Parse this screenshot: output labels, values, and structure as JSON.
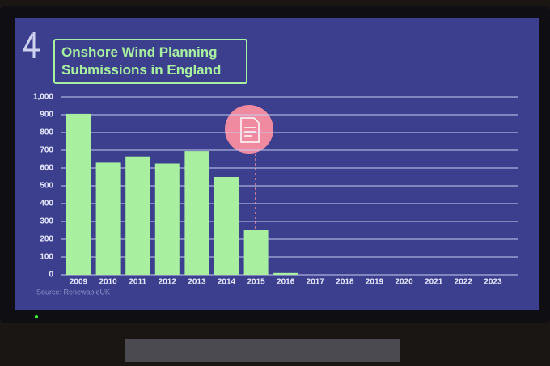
{
  "chart_data": {
    "type": "bar",
    "title": "Onshore Wind Planning Submissions in England",
    "source": "Source: RenewableUK",
    "categories": [
      "2009",
      "2010",
      "2011",
      "2012",
      "2013",
      "2014",
      "2015",
      "2016",
      "2017",
      "2018",
      "2019",
      "2020",
      "2021",
      "2022",
      "2023"
    ],
    "values": [
      905,
      630,
      665,
      625,
      695,
      550,
      250,
      10,
      0,
      0,
      0,
      0,
      0,
      0,
      0
    ],
    "color": "#a8f0a0",
    "ylim": [
      0,
      1000
    ],
    "yticks": [
      0,
      100,
      200,
      300,
      400,
      500,
      600,
      700,
      800,
      900,
      {
        "value": 1000,
        "label": "1,000"
      }
    ],
    "grid": true
  }
}
